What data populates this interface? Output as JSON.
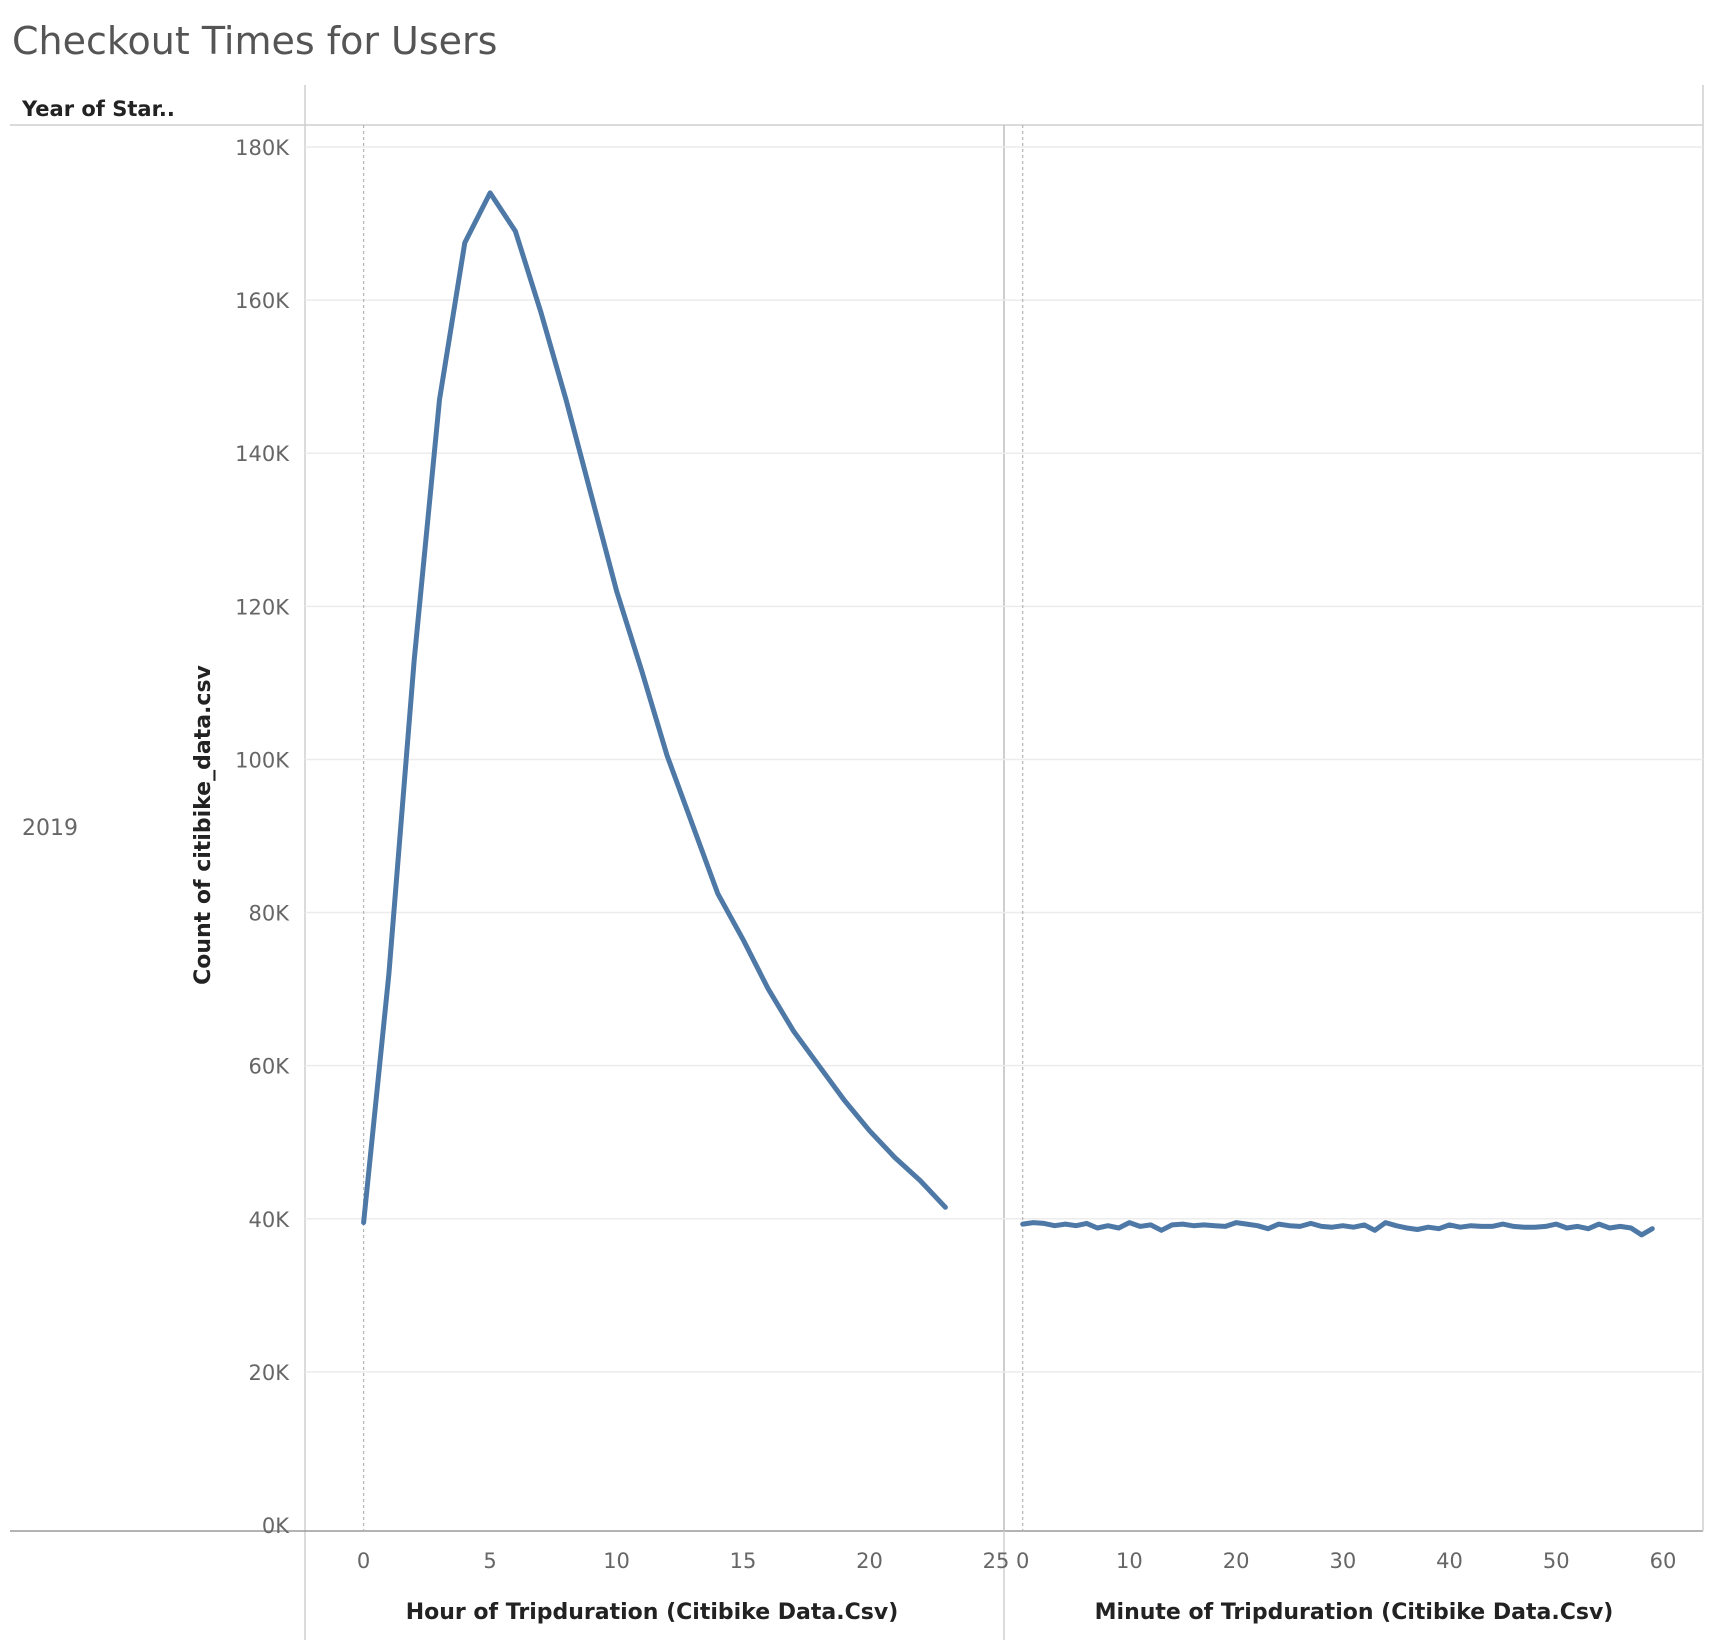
{
  "title": "Checkout Times for Users",
  "row_header": "Year of Star..",
  "row_label": "2019",
  "chart_data": [
    {
      "type": "line",
      "xlabel": "Hour of Tripduration (Citibike Data.Csv)",
      "ylabel": "Count of citibike_data.csv",
      "xlim": [
        -2,
        25
      ],
      "xticks": [
        0,
        5,
        10,
        15,
        20,
        25
      ],
      "ylim": [
        0,
        180000
      ],
      "yticks": [
        0,
        20000,
        40000,
        60000,
        80000,
        100000,
        120000,
        140000,
        160000,
        180000
      ],
      "ytick_labels": [
        "0K",
        "20K",
        "40K",
        "60K",
        "80K",
        "100K",
        "120K",
        "140K",
        "160K",
        "180K"
      ],
      "color": "#4e79a7",
      "x": [
        0,
        1,
        2,
        3,
        4,
        5,
        6,
        7,
        8,
        9,
        10,
        11,
        12,
        13,
        14,
        15,
        16,
        17,
        18,
        19,
        20,
        21,
        22,
        23
      ],
      "values": [
        39500,
        72000,
        113000,
        147000,
        167500,
        174000,
        169000,
        158500,
        147000,
        134500,
        122000,
        111500,
        100500,
        91500,
        82500,
        76500,
        70000,
        64500,
        60000,
        55500,
        51500,
        48000,
        45000,
        41500
      ]
    },
    {
      "type": "line",
      "xlabel": "Minute of Tripduration (Citibike Data.Csv)",
      "ylabel": "Count of citibike_data.csv",
      "xlim": [
        -1,
        63
      ],
      "xticks": [
        0,
        10,
        20,
        30,
        40,
        50,
        60
      ],
      "ylim": [
        0,
        180000
      ],
      "color": "#4e79a7",
      "x": [
        0,
        1,
        2,
        3,
        4,
        5,
        6,
        7,
        8,
        9,
        10,
        11,
        12,
        13,
        14,
        15,
        16,
        17,
        18,
        19,
        20,
        21,
        22,
        23,
        24,
        25,
        26,
        27,
        28,
        29,
        30,
        31,
        32,
        33,
        34,
        35,
        36,
        37,
        38,
        39,
        40,
        41,
        42,
        43,
        44,
        45,
        46,
        47,
        48,
        49,
        50,
        51,
        52,
        53,
        54,
        55,
        56,
        57,
        58,
        59
      ],
      "values": [
        39300,
        39500,
        39400,
        39100,
        39300,
        39100,
        39400,
        38800,
        39100,
        38800,
        39500,
        39000,
        39200,
        38500,
        39200,
        39300,
        39100,
        39200,
        39100,
        39000,
        39500,
        39300,
        39100,
        38700,
        39300,
        39100,
        39000,
        39400,
        39000,
        38900,
        39100,
        38900,
        39200,
        38500,
        39500,
        39100,
        38800,
        38600,
        38900,
        38700,
        39200,
        38900,
        39100,
        39000,
        39000,
        39300,
        39000,
        38900,
        38900,
        39000,
        39300,
        38800,
        39000,
        38700,
        39300,
        38800,
        39000,
        38800,
        37900,
        38700
      ]
    }
  ]
}
